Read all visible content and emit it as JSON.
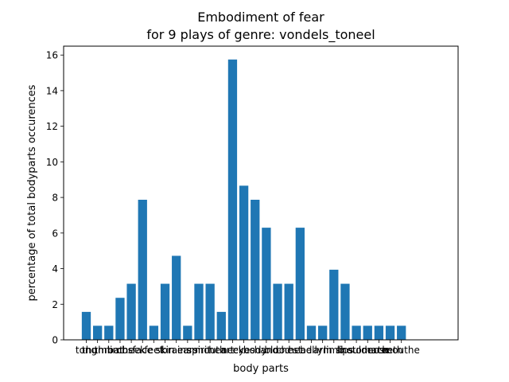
{
  "chart_data": {
    "type": "bar",
    "title": "Embodiment of fear",
    "subtitle": "for 9 plays of genre: vondels_toneel",
    "xlabel": "body parts",
    "ylabel": "percentage of total bodyparts occurences",
    "ylim": [
      0,
      16.5
    ],
    "yticks": [
      0,
      2,
      4,
      6,
      8,
      10,
      12,
      14,
      16
    ],
    "grid": false,
    "bar_color": "#1f77b4",
    "categories": [
      "tong",
      "thumb",
      "throat",
      "limbs",
      "cheek",
      "face",
      "feet",
      "skin",
      "brains",
      "ears",
      "spirit",
      "mouth",
      "heart",
      "neck",
      "eyes",
      "body",
      "hand",
      "blood",
      "chest",
      "head",
      "belly",
      "arm",
      "limb",
      "lips",
      "shoulder",
      "stomach",
      "nose",
      "teeth",
      "mouthe"
    ],
    "values": [
      1.57,
      0.79,
      0.79,
      2.36,
      3.15,
      7.87,
      0.79,
      3.15,
      4.72,
      0.79,
      3.15,
      3.15,
      1.57,
      15.75,
      8.66,
      7.87,
      6.3,
      3.15,
      3.15,
      6.3,
      0.79,
      0.79,
      3.94,
      3.15,
      0.79,
      0.79,
      0.79,
      0.79,
      0.79
    ]
  }
}
